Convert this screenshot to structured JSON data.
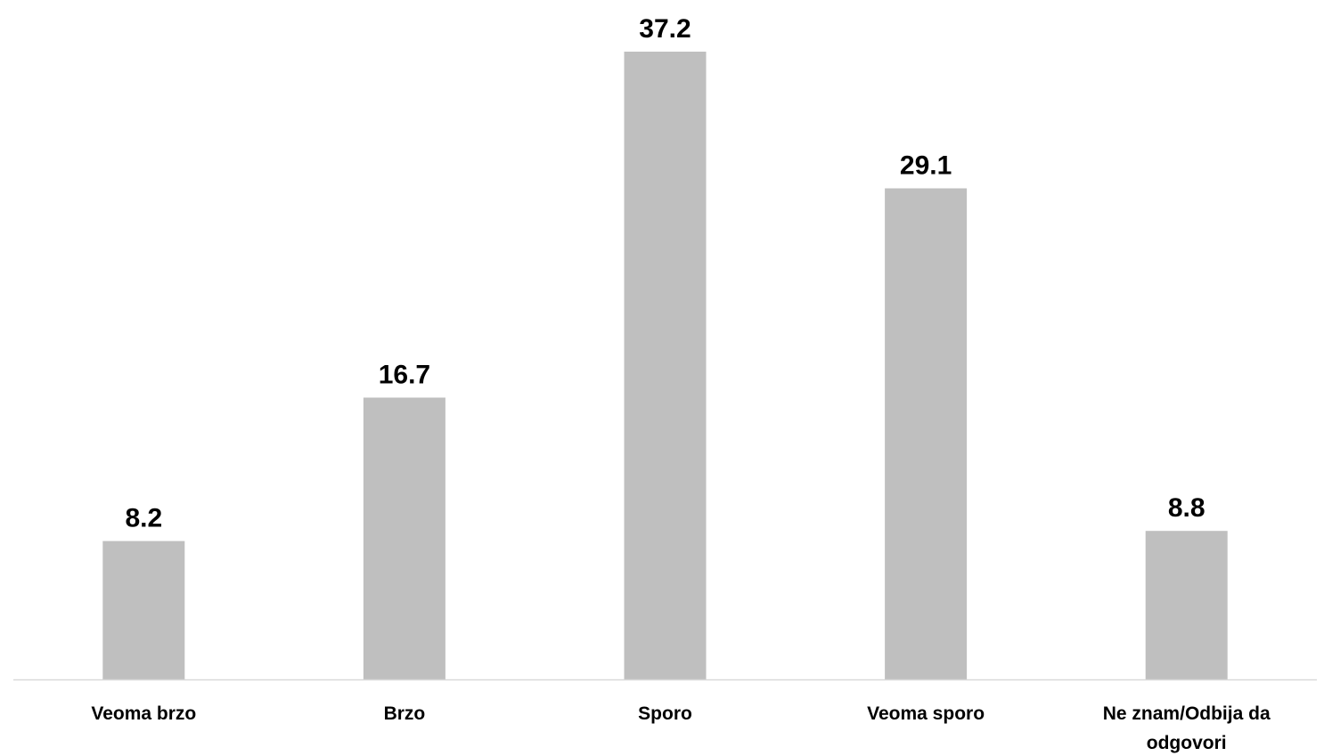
{
  "chart_data": {
    "type": "bar",
    "categories": [
      "Veoma brzo",
      "Brzo",
      "Sporo",
      "Veoma sporo",
      "Ne znam/Odbija da odgovori"
    ],
    "category_lines": [
      [
        "Veoma brzo"
      ],
      [
        "Brzo"
      ],
      [
        "Sporo"
      ],
      [
        "Veoma sporo"
      ],
      [
        "Ne znam/Odbija da",
        "odgovori"
      ]
    ],
    "values": [
      8.2,
      16.7,
      37.2,
      29.1,
      8.8
    ],
    "value_labels": [
      "8.2",
      "16.7",
      "37.2",
      "29.1",
      "8.8"
    ],
    "title": "",
    "xlabel": "",
    "ylabel": "",
    "ylim": [
      0,
      37.2
    ],
    "grid": false,
    "legend": "none",
    "bar_color": "#bfbfbf",
    "axis_color": "#d9d9d9"
  }
}
